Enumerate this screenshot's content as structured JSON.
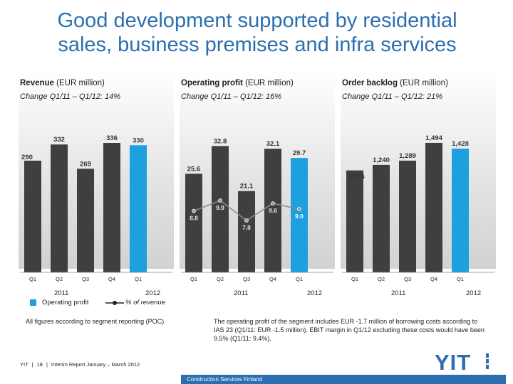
{
  "title": {
    "line1": "Good development supported by residential",
    "line2": "sales, business premises and infra services"
  },
  "colors": {
    "title": "#2b6fb0",
    "gray_bar": "#3f3f3f",
    "accent_bar": "#1e9fe0",
    "line": "#8c8c8c"
  },
  "panels": [
    {
      "metric": "Revenue",
      "unit": "(EUR million)",
      "change": "Change Q1/11 – Q1/12: 14%",
      "year1": "2011",
      "year2": "2012"
    },
    {
      "metric": "Operating profit",
      "unit": "(EUR million)",
      "change": "Change Q1/11 – Q1/12: 16%",
      "year1": "2011",
      "year2": "2012"
    },
    {
      "metric": "Order backlog",
      "unit": "(EUR million)",
      "change": "Change Q1/11 – Q1/12: 21%",
      "year1": "2011",
      "year2": "2012"
    }
  ],
  "chart_data": [
    {
      "type": "bar",
      "title": "Revenue (EUR million)",
      "categories": [
        "Q1",
        "Q2",
        "Q3",
        "Q4",
        "Q1"
      ],
      "values": [
        290,
        332,
        269,
        336,
        330
      ],
      "labels": [
        "290",
        "332",
        "269",
        "336",
        "330"
      ],
      "ylim": [
        0,
        360
      ],
      "grid": false
    },
    {
      "type": "bar",
      "title": "Operating profit (EUR million)",
      "categories": [
        "Q1",
        "Q2",
        "Q3",
        "Q4",
        "Q1"
      ],
      "series": [
        {
          "name": "Operating profit",
          "type": "bar",
          "values": [
            25.6,
            32.8,
            21.1,
            32.1,
            29.7
          ],
          "labels": [
            "25.6",
            "32.8",
            "21.1",
            "32.1",
            "29.7"
          ]
        },
        {
          "name": "% of revenue",
          "type": "line",
          "values": [
            8.8,
            9.9,
            7.8,
            9.6,
            9.0
          ],
          "labels": [
            "8.8",
            "9.9",
            "7.8",
            "9.6",
            "9.0"
          ]
        }
      ],
      "ylim": [
        0,
        36
      ],
      "grid": false
    },
    {
      "type": "bar",
      "title": "Order backlog (EUR million)",
      "categories": [
        "Q1",
        "Q2",
        "Q3",
        "Q4",
        "Q1"
      ],
      "values": [
        1176,
        1240,
        1289,
        1494,
        1428
      ],
      "labels": [
        "1,176",
        "1,240",
        "1,289",
        "1,494",
        "1,428"
      ],
      "ylim": [
        0,
        1600
      ],
      "grid": false
    }
  ],
  "legend": {
    "bar": "Operating profit",
    "line": "% of revenue"
  },
  "notes": {
    "left": "All figures according to segment reporting (POC)",
    "right": "The operating profit of the segment includes EUR -1.7 million of borrowing costs according to IAS 23 (Q1/11: EUR -1.5 million). EBIT margin in Q1/12 excluding these costs would have been 9.5% (Q1/11: 9.4%)."
  },
  "footer": {
    "company": "YIT",
    "page": "18",
    "report": "Interim Report January – March 2012",
    "segment": "Construction Services Finland"
  },
  "logo": {
    "text": "YIT"
  }
}
